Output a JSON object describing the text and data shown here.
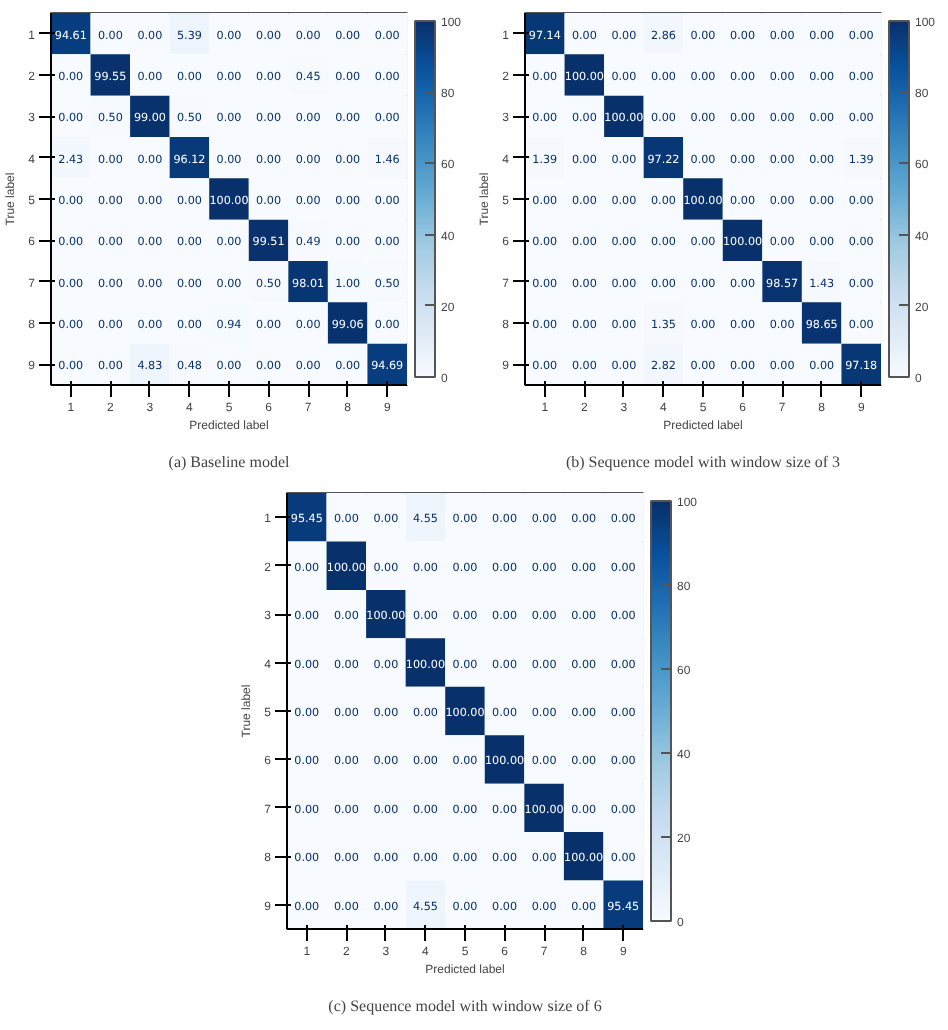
{
  "chart_data": [
    {
      "type": "heatmap",
      "title": "(a) Baseline model",
      "xlabel": "Predicted label",
      "ylabel": "True label",
      "categories": [
        "1",
        "2",
        "3",
        "4",
        "5",
        "6",
        "7",
        "8",
        "9"
      ],
      "y_categories": [
        "1",
        "2",
        "3",
        "4",
        "5",
        "6",
        "7",
        "8",
        "9"
      ],
      "cells": [
        [
          94.61,
          0,
          0,
          5.39,
          0,
          0,
          0,
          0,
          0
        ],
        [
          0,
          99.55,
          0,
          0,
          0,
          0,
          0.45,
          0,
          0
        ],
        [
          0,
          0.5,
          99.0,
          0.5,
          0,
          0,
          0,
          0,
          0
        ],
        [
          2.43,
          0,
          0,
          96.12,
          0,
          0,
          0,
          0,
          1.46
        ],
        [
          0,
          0,
          0,
          0,
          100,
          0,
          0,
          0,
          0
        ],
        [
          0,
          0,
          0,
          0,
          0,
          99.51,
          0.49,
          0,
          0
        ],
        [
          0,
          0,
          0,
          0,
          0,
          0.5,
          98.01,
          1.0,
          0.5
        ],
        [
          0,
          0,
          0,
          0,
          0.94,
          0,
          0,
          99.06,
          0
        ],
        [
          0,
          0,
          4.83,
          0.48,
          0,
          0,
          0,
          0,
          94.69
        ]
      ],
      "cell_labels": [
        [
          "94.61",
          "0.00",
          "0.00",
          "5.39",
          "0.00",
          "0.00",
          "0.00",
          "0.00",
          "0.00"
        ],
        [
          "0.00",
          "99.55",
          "0.00",
          "0.00",
          "0.00",
          "0.00",
          "0.45",
          "0.00",
          "0.00"
        ],
        [
          "0.00",
          "0.50",
          "99.00",
          "0.50",
          "0.00",
          "0.00",
          "0.00",
          "0.00",
          "0.00"
        ],
        [
          "2.43",
          "0.00",
          "0.00",
          "96.12",
          "0.00",
          "0.00",
          "0.00",
          "0.00",
          "1.46"
        ],
        [
          "0.00",
          "0.00",
          "0.00",
          "0.00",
          "100.00",
          "0.00",
          "0.00",
          "0.00",
          "0.00"
        ],
        [
          "0.00",
          "0.00",
          "0.00",
          "0.00",
          "0.00",
          "99.51",
          "0.49",
          "0.00",
          "0.00"
        ],
        [
          "0.00",
          "0.00",
          "0.00",
          "0.00",
          "0.00",
          "0.50",
          "98.01",
          "1.00",
          "0.50"
        ],
        [
          "0.00",
          "0.00",
          "0.00",
          "0.00",
          "0.94",
          "0.00",
          "0.00",
          "99.06",
          "0.00"
        ],
        [
          "0.00",
          "0.00",
          "4.83",
          "0.48",
          "0.00",
          "0.00",
          "0.00",
          "0.00",
          "94.69"
        ]
      ],
      "clim": [
        0,
        100
      ],
      "cticks": [
        0,
        20,
        40,
        60,
        80,
        100
      ]
    },
    {
      "type": "heatmap",
      "title": "(b) Sequence model with window size of 3",
      "xlabel": "Predicted label",
      "ylabel": "True label",
      "categories": [
        "1",
        "2",
        "3",
        "4",
        "5",
        "6",
        "7",
        "8",
        "9"
      ],
      "y_categories": [
        "1",
        "2",
        "3",
        "4",
        "5",
        "6",
        "7",
        "8",
        "9"
      ],
      "cells": [
        [
          97.14,
          0,
          0,
          2.86,
          0,
          0,
          0,
          0,
          0
        ],
        [
          0,
          100,
          0,
          0,
          0,
          0,
          0,
          0,
          0
        ],
        [
          0,
          0,
          100,
          0,
          0,
          0,
          0,
          0,
          0
        ],
        [
          1.39,
          0,
          0,
          97.22,
          0,
          0,
          0,
          0,
          1.39
        ],
        [
          0,
          0,
          0,
          0,
          100,
          0,
          0,
          0,
          0
        ],
        [
          0,
          0,
          0,
          0,
          0,
          100,
          0,
          0,
          0
        ],
        [
          0,
          0,
          0,
          0,
          0,
          0,
          98.57,
          1.43,
          0
        ],
        [
          0,
          0,
          0,
          1.35,
          0,
          0,
          0,
          98.65,
          0
        ],
        [
          0,
          0,
          0,
          2.82,
          0,
          0,
          0,
          0,
          97.18
        ]
      ],
      "cell_labels": [
        [
          "97.14",
          "0.00",
          "0.00",
          "2.86",
          "0.00",
          "0.00",
          "0.00",
          "0.00",
          "0.00"
        ],
        [
          "0.00",
          "100.00",
          "0.00",
          "0.00",
          "0.00",
          "0.00",
          "0.00",
          "0.00",
          "0.00"
        ],
        [
          "0.00",
          "0.00",
          "100.00",
          "0.00",
          "0.00",
          "0.00",
          "0.00",
          "0.00",
          "0.00"
        ],
        [
          "1.39",
          "0.00",
          "0.00",
          "97.22",
          "0.00",
          "0.00",
          "0.00",
          "0.00",
          "1.39"
        ],
        [
          "0.00",
          "0.00",
          "0.00",
          "0.00",
          "100.00",
          "0.00",
          "0.00",
          "0.00",
          "0.00"
        ],
        [
          "0.00",
          "0.00",
          "0.00",
          "0.00",
          "0.00",
          "100.00",
          "0.00",
          "0.00",
          "0.00"
        ],
        [
          "0.00",
          "0.00",
          "0.00",
          "0.00",
          "0.00",
          "0.00",
          "98.57",
          "1.43",
          "0.00"
        ],
        [
          "0.00",
          "0.00",
          "0.00",
          "1.35",
          "0.00",
          "0.00",
          "0.00",
          "98.65",
          "0.00"
        ],
        [
          "0.00",
          "0.00",
          "0.00",
          "2.82",
          "0.00",
          "0.00",
          "0.00",
          "0.00",
          "97.18"
        ]
      ],
      "clim": [
        0,
        100
      ],
      "cticks": [
        0,
        20,
        40,
        60,
        80,
        100
      ]
    },
    {
      "type": "heatmap",
      "title": "(c) Sequence model with window size of 6",
      "xlabel": "Predicted label",
      "ylabel": "True label",
      "categories": [
        "1",
        "2",
        "3",
        "4",
        "5",
        "6",
        "7",
        "8",
        "9"
      ],
      "y_categories": [
        "1",
        "2",
        "3",
        "4",
        "5",
        "6",
        "7",
        "8",
        "9"
      ],
      "cells": [
        [
          95.45,
          0,
          0,
          4.55,
          0,
          0,
          0,
          0,
          0
        ],
        [
          0,
          100,
          0,
          0,
          0,
          0,
          0,
          0,
          0
        ],
        [
          0,
          0,
          100,
          0,
          0,
          0,
          0,
          0,
          0
        ],
        [
          0,
          0,
          0,
          100,
          0,
          0,
          0,
          0,
          0
        ],
        [
          0,
          0,
          0,
          0,
          100,
          0,
          0,
          0,
          0
        ],
        [
          0,
          0,
          0,
          0,
          0,
          100,
          0,
          0,
          0
        ],
        [
          0,
          0,
          0,
          0,
          0,
          0,
          100,
          0,
          0
        ],
        [
          0,
          0,
          0,
          0,
          0,
          0,
          0,
          100,
          0
        ],
        [
          0,
          0,
          0,
          4.55,
          0,
          0,
          0,
          0,
          95.45
        ]
      ],
      "cell_labels": [
        [
          "95.45",
          "0.00",
          "0.00",
          "4.55",
          "0.00",
          "0.00",
          "0.00",
          "0.00",
          "0.00"
        ],
        [
          "0.00",
          "100.00",
          "0.00",
          "0.00",
          "0.00",
          "0.00",
          "0.00",
          "0.00",
          "0.00"
        ],
        [
          "0.00",
          "0.00",
          "100.00",
          "0.00",
          "0.00",
          "0.00",
          "0.00",
          "0.00",
          "0.00"
        ],
        [
          "0.00",
          "0.00",
          "0.00",
          "100.00",
          "0.00",
          "0.00",
          "0.00",
          "0.00",
          "0.00"
        ],
        [
          "0.00",
          "0.00",
          "0.00",
          "0.00",
          "100.00",
          "0.00",
          "0.00",
          "0.00",
          "0.00"
        ],
        [
          "0.00",
          "0.00",
          "0.00",
          "0.00",
          "0.00",
          "100.00",
          "0.00",
          "0.00",
          "0.00"
        ],
        [
          "0.00",
          "0.00",
          "0.00",
          "0.00",
          "0.00",
          "0.00",
          "100.00",
          "0.00",
          "0.00"
        ],
        [
          "0.00",
          "0.00",
          "0.00",
          "0.00",
          "0.00",
          "0.00",
          "0.00",
          "100.00",
          "0.00"
        ],
        [
          "0.00",
          "0.00",
          "0.00",
          "4.55",
          "0.00",
          "0.00",
          "0.00",
          "0.00",
          "95.45"
        ]
      ],
      "clim": [
        0,
        100
      ],
      "cticks": [
        0,
        20,
        40,
        60,
        80,
        100
      ]
    }
  ]
}
